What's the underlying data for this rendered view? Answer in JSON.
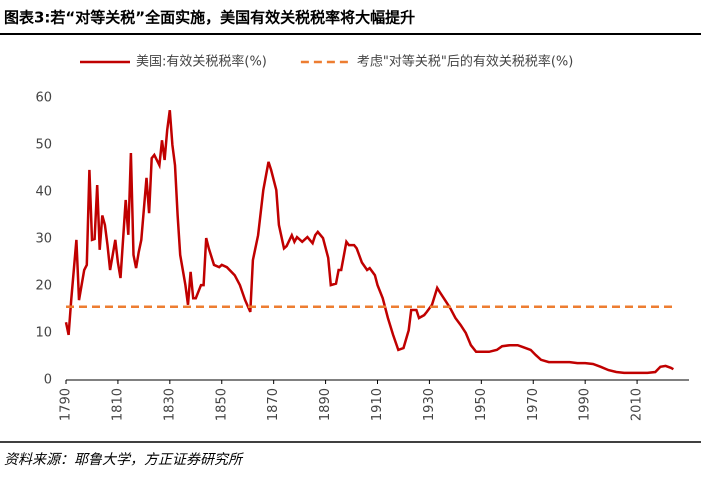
{
  "chart_data": {
    "type": "line",
    "title": "图表3:若“对等关税”全面实施，美国有效关税税率将大幅提升",
    "source": "资料来源：耶鲁大学，方正证券研究所",
    "legend": "top",
    "xlim": [
      1790,
      2030
    ],
    "xticks": [
      1790,
      1810,
      1830,
      1850,
      1870,
      1890,
      1910,
      1930,
      1950,
      1970,
      1990,
      2010
    ],
    "ylim": [
      0,
      60
    ],
    "yticks": [
      0,
      10,
      20,
      30,
      40,
      50,
      60
    ],
    "grid": false,
    "series": [
      {
        "name": "美国:有效关税税率(%)",
        "color": "#c00000",
        "style": "solid",
        "x": [
          1790,
          1791,
          1792,
          1794,
          1795,
          1797,
          1798,
          1799,
          1800,
          1801,
          1802,
          1803,
          1804,
          1805,
          1806,
          1807,
          1809,
          1810,
          1811,
          1813,
          1814,
          1815,
          1816,
          1817,
          1818,
          1819,
          1821,
          1822,
          1823,
          1824,
          1826,
          1827,
          1828,
          1829,
          1830,
          1831,
          1832,
          1833,
          1834,
          1835,
          1836,
          1837,
          1838,
          1839,
          1840,
          1842,
          1843,
          1844,
          1845,
          1847,
          1849,
          1850,
          1852,
          1855,
          1857,
          1859,
          1861,
          1862,
          1864,
          1866,
          1868,
          1869,
          1871,
          1872,
          1874,
          1875,
          1877,
          1878,
          1879,
          1881,
          1883,
          1885,
          1886,
          1887,
          1889,
          1891,
          1892,
          1894,
          1895,
          1896,
          1898,
          1899,
          1901,
          1902,
          1904,
          1906,
          1907,
          1909,
          1910,
          1912,
          1914,
          1916,
          1918,
          1920,
          1922,
          1923,
          1925,
          1926,
          1928,
          1929,
          1931,
          1933,
          1934,
          1936,
          1938,
          1940,
          1942,
          1944,
          1946,
          1948,
          1950,
          1953,
          1956,
          1958,
          1961,
          1964,
          1966,
          1969,
          1971,
          1973,
          1976,
          1978,
          1980,
          1984,
          1987,
          1990,
          1993,
          1996,
          1999,
          2002,
          2005,
          2008,
          2011,
          2014,
          2017,
          2019,
          2021,
          2023,
          2024
        ],
        "values": [
          12.3,
          9.6,
          17,
          29.8,
          17,
          23.4,
          24.5,
          44.7,
          29.8,
          30,
          41.5,
          27.7,
          35,
          33,
          28.7,
          23.4,
          29.8,
          25,
          21.7,
          38.3,
          30.9,
          48.3,
          26.6,
          23.8,
          27.2,
          29.8,
          43,
          35.5,
          47.2,
          47.9,
          45.7,
          51,
          46.8,
          53.2,
          57.4,
          50,
          45.7,
          35.1,
          26.6,
          23.4,
          20.2,
          16,
          23,
          17.4,
          17.4,
          20.2,
          20.2,
          30.2,
          28,
          24.5,
          24,
          24.5,
          24,
          22.3,
          20.2,
          17,
          14.5,
          25.5,
          30.8,
          40.4,
          46.4,
          44.7,
          40.4,
          33,
          28,
          28.5,
          30.8,
          29.4,
          30.4,
          29.4,
          30.4,
          29.1,
          30.8,
          31.5,
          30.2,
          26,
          20.2,
          20.5,
          23.4,
          23.4,
          29.4,
          28.7,
          28.7,
          28,
          25,
          23.4,
          23.8,
          22.3,
          20.2,
          17.4,
          13.2,
          9.6,
          6.4,
          6.8,
          10.6,
          14.9,
          14.9,
          13.2,
          13.8,
          14.5,
          16,
          19.6,
          18.7,
          17,
          15.3,
          13.2,
          11.7,
          10,
          7.4,
          6,
          6,
          6,
          6.4,
          7.2,
          7.4,
          7.4,
          7,
          6.4,
          5.3,
          4.3,
          3.8,
          3.8,
          3.8,
          3.8,
          3.6,
          3.6,
          3.4,
          2.8,
          2.1,
          1.7,
          1.5,
          1.5,
          1.5,
          1.5,
          1.7,
          2.8,
          3,
          2.6,
          2.3
        ]
      },
      {
        "name": "考虑\"对等关税\"后的有效关税税率(%)",
        "color": "#ed7d31",
        "style": "dashed",
        "x": [
          1790,
          2024
        ],
        "values": [
          15.6,
          15.6
        ]
      }
    ]
  }
}
